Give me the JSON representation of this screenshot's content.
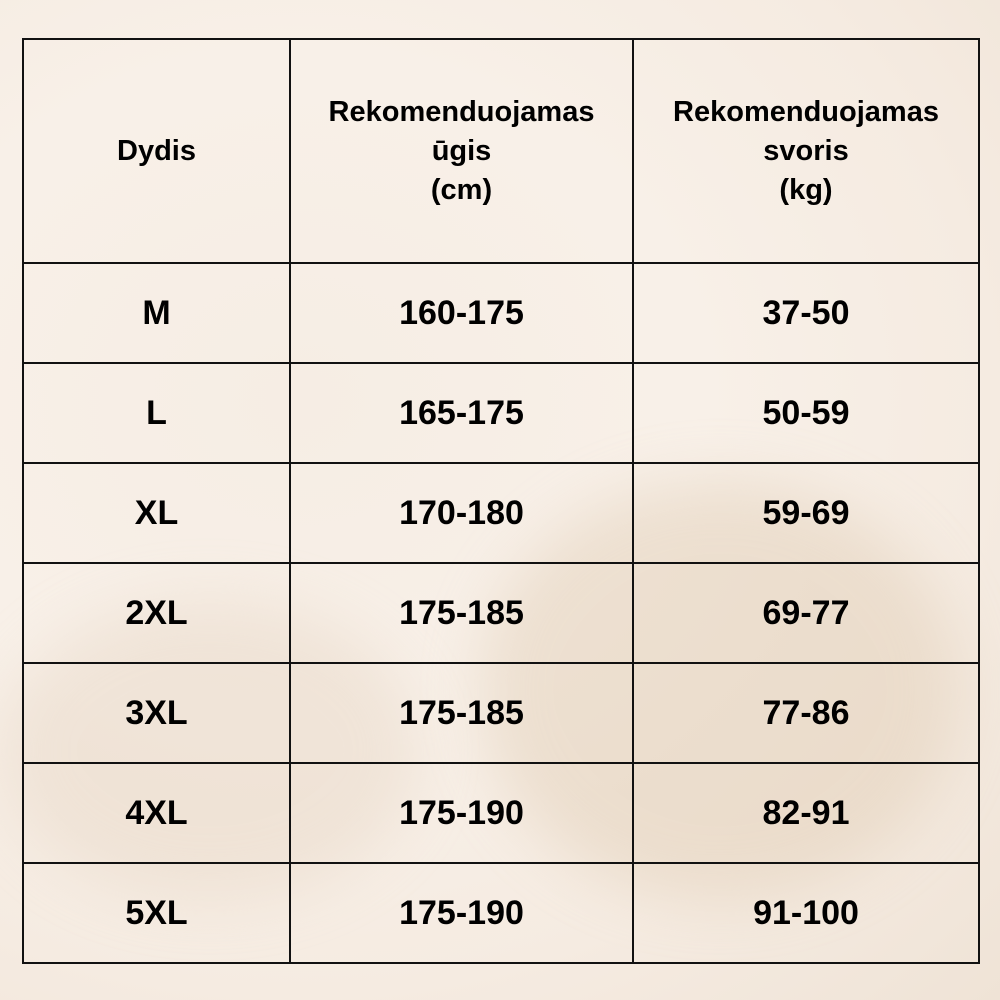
{
  "headers": [
    {
      "lines": [
        "Dydis"
      ]
    },
    {
      "lines": [
        "Rekomenduojamas",
        "ūgis",
        "(cm)"
      ]
    },
    {
      "lines": [
        "Rekomenduojamas",
        "svoris",
        "(kg)"
      ]
    }
  ],
  "rows": [
    [
      "M",
      "160-175",
      "37-50"
    ],
    [
      "L",
      "165-175",
      "50-59"
    ],
    [
      "XL",
      "170-180",
      "59-69"
    ],
    [
      "2XL",
      "175-185",
      "69-77"
    ],
    [
      "3XL",
      "175-185",
      "77-86"
    ],
    [
      "4XL",
      "175-190",
      "82-91"
    ],
    [
      "5XL",
      "175-190",
      "91-100"
    ]
  ]
}
